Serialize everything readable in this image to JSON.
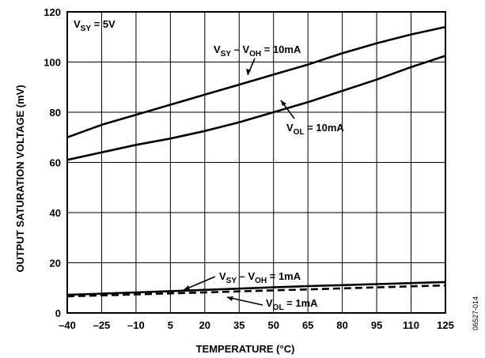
{
  "chart_data": {
    "type": "line",
    "xlabel": "TEMPERATURE (°C)",
    "ylabel": "OUTPUT SATURATION VOLTAGE (mV)",
    "xlim": [
      -40,
      125
    ],
    "ylim": [
      0,
      120
    ],
    "x_ticks": [
      -40,
      -25,
      -10,
      5,
      20,
      35,
      50,
      65,
      80,
      95,
      110,
      125
    ],
    "y_ticks": [
      0,
      20,
      40,
      60,
      80,
      100,
      120
    ],
    "grid": true,
    "legend": "none",
    "series": [
      {
        "name": "VSY − VOH = 10mA",
        "style": "solid",
        "x": [
          -40,
          -25,
          -10,
          5,
          20,
          35,
          50,
          65,
          80,
          95,
          110,
          125
        ],
        "y": [
          70,
          75,
          79,
          83,
          87,
          91,
          95,
          99,
          103.5,
          107.5,
          111,
          114
        ]
      },
      {
        "name": "VOL = 10mA",
        "style": "solid",
        "x": [
          -40,
          -25,
          -10,
          5,
          20,
          35,
          50,
          65,
          80,
          95,
          110,
          125
        ],
        "y": [
          61,
          64,
          67,
          69.5,
          72.5,
          76,
          80,
          84,
          88.5,
          93,
          98,
          102.5
        ]
      },
      {
        "name": "VSY − VOH = 1mA",
        "style": "solid",
        "x": [
          -40,
          -25,
          -10,
          5,
          20,
          35,
          50,
          65,
          80,
          95,
          110,
          125
        ],
        "y": [
          7.2,
          7.7,
          8.2,
          8.7,
          9.2,
          9.7,
          10.2,
          10.7,
          11.1,
          11.5,
          11.9,
          12.3
        ]
      },
      {
        "name": "VOL = 1mA",
        "style": "dashed",
        "x": [
          -40,
          -25,
          -10,
          5,
          20,
          35,
          50,
          65,
          80,
          95,
          110,
          125
        ],
        "y": [
          6.6,
          7.0,
          7.4,
          7.8,
          8.2,
          8.6,
          9.0,
          9.4,
          9.8,
          10.2,
          10.6,
          11.0
        ]
      }
    ],
    "annotations": {
      "vsy": {
        "main": "V",
        "sub": "SY",
        "rest": " = 5V"
      },
      "s1": {
        "p1": "V",
        "s1": "SY",
        "p2": " – V",
        "s2": "OH",
        "p3": " = 10mA"
      },
      "s2": {
        "p1": "V",
        "s1": "OL",
        "p2": " = 10mA"
      },
      "s3": {
        "p1": "V",
        "s1": "SY",
        "p2": " – V",
        "s2": "OH",
        "p3": " = 1mA"
      },
      "s4": {
        "p1": "V",
        "s1": "OL",
        "p2": " = 1mA"
      }
    },
    "figure_id": "06527-014"
  }
}
